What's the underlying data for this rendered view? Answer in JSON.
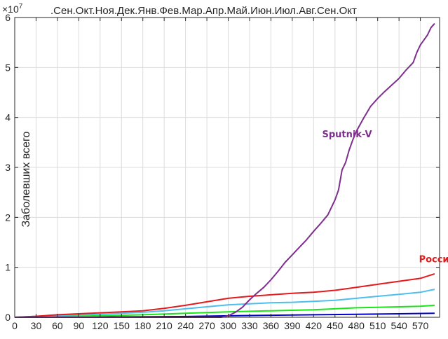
{
  "chart_data": {
    "type": "line",
    "ylabel": "Заболевших всего",
    "y_exponent_label": "×10",
    "y_exponent_power": "7",
    "xlim": [
      0,
      597
    ],
    "ylim": [
      0,
      6
    ],
    "x_ticks": [
      0,
      30,
      60,
      90,
      120,
      150,
      180,
      210,
      240,
      270,
      300,
      330,
      360,
      390,
      420,
      450,
      480,
      510,
      540,
      570
    ],
    "y_ticks": [
      0,
      1,
      2,
      3,
      4,
      5,
      6
    ],
    "top_axis_text": ".Сен.Окт.Ноя.Дек.Янв.Фев.Мар.Апр.Май.Июн.Июл.Авг.Сен.Окт",
    "grid": true,
    "series": [
      {
        "name": "Sputnik-V",
        "color": "#7e2f8e",
        "x": [
          0,
          290,
          300,
          310,
          320,
          330,
          340,
          350,
          360,
          370,
          380,
          390,
          400,
          410,
          420,
          430,
          440,
          450,
          455,
          460,
          465,
          470,
          475,
          480,
          485,
          490,
          495,
          500,
          510,
          520,
          530,
          540,
          550,
          560,
          565,
          570,
          575,
          580,
          585,
          590
        ],
        "y": [
          0,
          0,
          0.03,
          0.1,
          0.2,
          0.35,
          0.48,
          0.6,
          0.75,
          0.92,
          1.1,
          1.25,
          1.4,
          1.55,
          1.72,
          1.88,
          2.05,
          2.35,
          2.55,
          2.95,
          3.1,
          3.35,
          3.55,
          3.72,
          3.85,
          3.98,
          4.1,
          4.22,
          4.38,
          4.52,
          4.65,
          4.78,
          4.95,
          5.1,
          5.3,
          5.45,
          5.55,
          5.65,
          5.8,
          5.88
        ]
      },
      {
        "name": "Россия",
        "color": "#e41a1c",
        "x": [
          0,
          30,
          60,
          90,
          120,
          150,
          180,
          210,
          240,
          270,
          300,
          330,
          360,
          390,
          420,
          450,
          480,
          510,
          540,
          570,
          590
        ],
        "y": [
          0,
          0.02,
          0.05,
          0.07,
          0.09,
          0.11,
          0.13,
          0.18,
          0.24,
          0.31,
          0.38,
          0.42,
          0.45,
          0.48,
          0.5,
          0.54,
          0.6,
          0.66,
          0.72,
          0.78,
          0.87
        ]
      },
      {
        "name": "",
        "color": "#4dbeee",
        "x": [
          0,
          30,
          60,
          90,
          120,
          150,
          180,
          210,
          240,
          270,
          300,
          330,
          360,
          390,
          420,
          450,
          480,
          510,
          540,
          570,
          590
        ],
        "y": [
          0,
          0.02,
          0.04,
          0.05,
          0.06,
          0.08,
          0.1,
          0.13,
          0.17,
          0.21,
          0.25,
          0.27,
          0.29,
          0.3,
          0.32,
          0.34,
          0.38,
          0.42,
          0.46,
          0.5,
          0.56
        ]
      },
      {
        "name": "",
        "color": "#19e619",
        "x": [
          0,
          60,
          120,
          180,
          240,
          300,
          360,
          420,
          450,
          480,
          510,
          540,
          570,
          590
        ],
        "y": [
          0,
          0.02,
          0.03,
          0.05,
          0.08,
          0.11,
          0.13,
          0.15,
          0.17,
          0.19,
          0.2,
          0.21,
          0.22,
          0.24
        ]
      },
      {
        "name": "",
        "color": "#0000cc",
        "x": [
          0,
          120,
          240,
          300,
          360,
          420,
          480,
          540,
          590
        ],
        "y": [
          0,
          0.005,
          0.015,
          0.03,
          0.04,
          0.05,
          0.06,
          0.07,
          0.08
        ]
      }
    ],
    "annotations": [
      {
        "text": "Sputnik-V",
        "color": "#7e2f8e",
        "x": 432,
        "y": 3.6
      },
      {
        "text": "Россия",
        "color": "#e41a1c",
        "x": 568,
        "y": 1.1
      }
    ]
  }
}
